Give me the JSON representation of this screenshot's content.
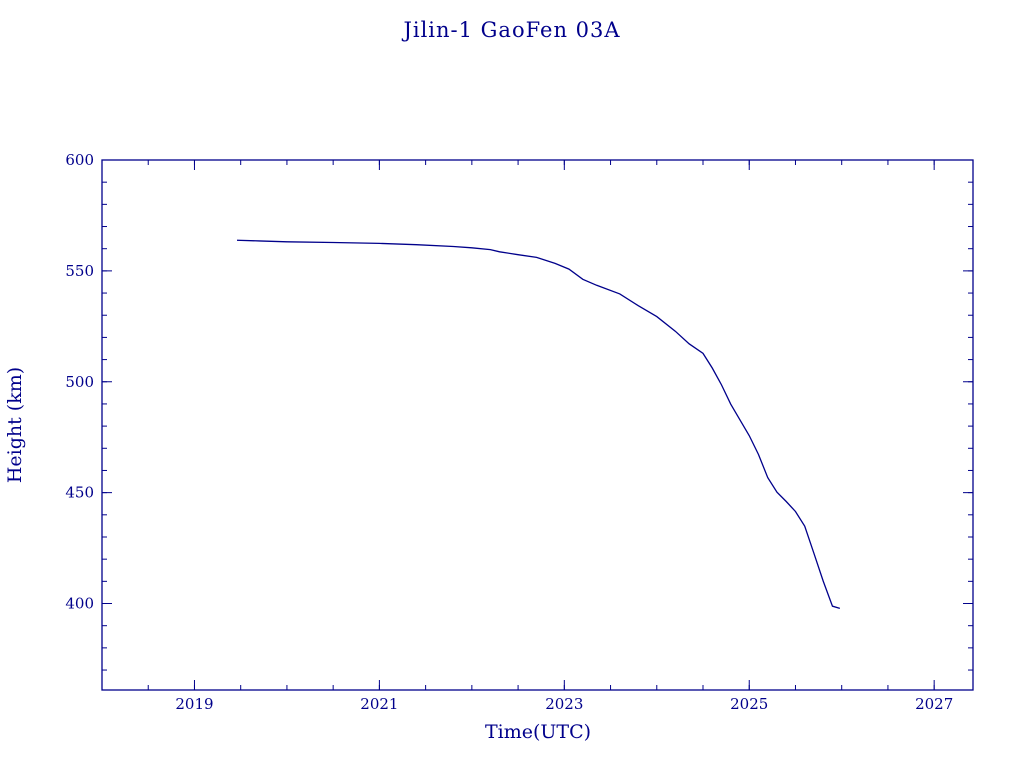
{
  "chart_data": {
    "type": "line",
    "title": "Jilin-1 GaoFen 03A",
    "xlabel": "Time(UTC)",
    "ylabel": "Height (km)",
    "xlim": [
      2018.0,
      2027.42
    ],
    "ylim": [
      361,
      600
    ],
    "x_ticks": [
      2019,
      2021,
      2023,
      2025,
      2027
    ],
    "y_ticks": [
      400,
      450,
      500,
      550,
      600
    ],
    "x_minor_step": 0.5,
    "y_minor_step": 10,
    "grid": false,
    "color": "#00008b",
    "series": [
      {
        "x": [
          2019.46,
          2019.7,
          2020.0,
          2020.5,
          2021.0,
          2021.4,
          2021.8,
          2022.0,
          2022.2,
          2022.3,
          2022.5,
          2022.7,
          2022.9,
          2023.05,
          2023.2,
          2023.35,
          2023.6,
          2023.8,
          2024.0,
          2024.2,
          2024.35,
          2024.5,
          2024.6,
          2024.7,
          2024.8,
          2024.9,
          2025.0,
          2025.1,
          2025.2,
          2025.3,
          2025.4,
          2025.5,
          2025.6,
          2025.7,
          2025.8,
          2025.9,
          2025.98
        ],
        "y": [
          563.8,
          563.5,
          563.1,
          562.8,
          562.4,
          561.8,
          561.0,
          560.4,
          559.6,
          558.6,
          557.3,
          556.1,
          553.4,
          550.8,
          546.2,
          543.5,
          539.6,
          534.3,
          529.4,
          522.8,
          517.1,
          512.8,
          506.2,
          498.6,
          489.9,
          482.8,
          475.7,
          467.2,
          456.8,
          450.2,
          446.0,
          441.5,
          434.9,
          422.6,
          410.1,
          398.8,
          397.8
        ]
      }
    ]
  }
}
